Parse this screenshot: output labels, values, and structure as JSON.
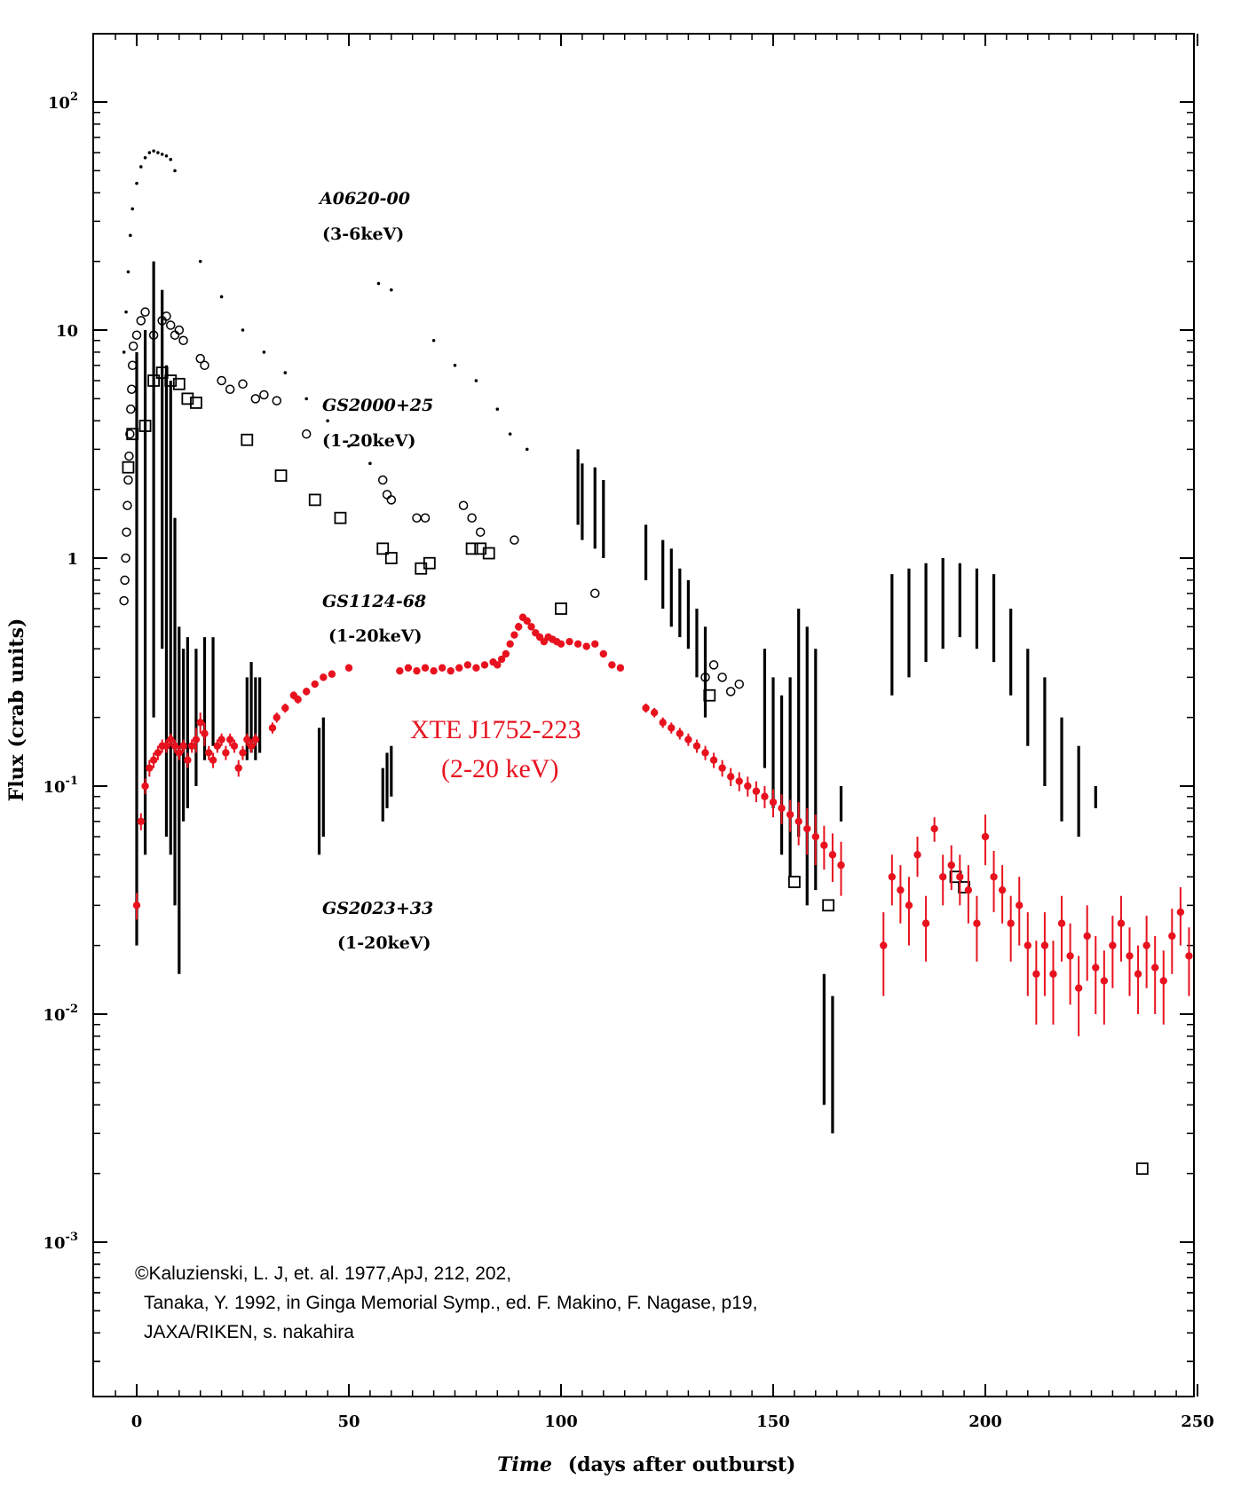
{
  "chart_data": {
    "type": "scatter",
    "title": "",
    "xlabel": "Time",
    "xlabel_suffix": "(days after outburst)",
    "ylabel": "Flux (crab units)",
    "xlim": [
      -8,
      250
    ],
    "ylim_log10": [
      -3.7,
      2.3
    ],
    "yscale": "log",
    "grid": false,
    "x_ticks": [
      0,
      50,
      100,
      150,
      200,
      250
    ],
    "x_tick_labels": [
      "0",
      "50",
      "100",
      "150",
      "200",
      "250"
    ],
    "y_ticks_log10": [
      2,
      1,
      0,
      -1,
      -2,
      -3
    ],
    "y_tick_labels": [
      {
        "base": "10",
        "exp": "2"
      },
      {
        "base": "10",
        "exp": ""
      },
      {
        "base": "1",
        "exp": ""
      },
      {
        "base": "10",
        "exp": "-1"
      },
      {
        "base": "10",
        "exp": "-2"
      },
      {
        "base": "10",
        "exp": "-3"
      }
    ],
    "series": [
      {
        "name": "A0620-00",
        "band": "(3-6keV)",
        "color": "#000000",
        "marker": "dot",
        "x": [
          -3,
          -2.5,
          -2,
          -1.5,
          -1,
          0,
          1,
          2,
          3,
          4,
          5,
          6,
          7,
          8,
          9,
          15,
          20,
          25,
          30,
          35,
          40,
          45,
          50,
          55,
          57,
          60,
          70,
          75,
          80,
          85,
          88,
          92
        ],
        "y": [
          8,
          12,
          18,
          26,
          34,
          44,
          52,
          57,
          60,
          61,
          60,
          59,
          58,
          56,
          50,
          20,
          14,
          10,
          8,
          6.5,
          5,
          4,
          3.1,
          2.6,
          16,
          15,
          9,
          7,
          6,
          4.5,
          3.5,
          3
        ]
      },
      {
        "name": "GS2000+25",
        "band": "(1-20keV)",
        "color": "#000000",
        "marker": "circle",
        "x": [
          -3,
          -2.8,
          -2.6,
          -2.4,
          -2.2,
          -2,
          -1.8,
          -1.6,
          -1.4,
          -1.2,
          -1,
          -0.8,
          0,
          1,
          2,
          4,
          6,
          7,
          8,
          9,
          10,
          11,
          15,
          16,
          20,
          22,
          25,
          28,
          30,
          33,
          40,
          58,
          59,
          60,
          66,
          68,
          77,
          79,
          81,
          89,
          108,
          134,
          136,
          138,
          140,
          142
        ],
        "y": [
          0.65,
          0.8,
          1,
          1.3,
          1.7,
          2.2,
          2.8,
          3.5,
          4.5,
          5.5,
          7,
          8.5,
          9.5,
          11,
          12,
          9.5,
          11,
          11.5,
          10.5,
          9.5,
          10,
          9,
          7.5,
          7,
          6,
          5.5,
          5.8,
          5,
          5.2,
          4.9,
          3.5,
          2.2,
          1.9,
          1.8,
          1.5,
          1.5,
          1.7,
          1.5,
          1.3,
          1.2,
          0.7,
          0.3,
          0.34,
          0.3,
          0.26,
          0.28
        ]
      },
      {
        "name": "GS1124-68",
        "band": "(1-20keV)",
        "color": "#000000",
        "marker": "square",
        "x": [
          -2,
          -1,
          2,
          4,
          6,
          8,
          10,
          12,
          14,
          26,
          34,
          42,
          48,
          58,
          60,
          67,
          69,
          79,
          81,
          83,
          100,
          135,
          155,
          163,
          193,
          195,
          237
        ],
        "y": [
          2.5,
          3.5,
          3.8,
          6,
          6.5,
          6,
          5.8,
          5,
          4.8,
          3.3,
          2.3,
          1.8,
          1.5,
          1.1,
          1.0,
          0.9,
          0.95,
          1.1,
          1.1,
          1.05,
          0.6,
          0.25,
          0.038,
          0.03,
          0.04,
          0.036,
          0.0021
        ]
      },
      {
        "name": "GS2023+33",
        "band": "(1-20keV)",
        "color": "#000000",
        "marker": "vbar",
        "x": [
          0,
          2,
          4,
          6,
          7,
          8,
          9,
          10,
          11,
          12,
          14,
          16,
          18,
          26,
          27,
          28,
          29,
          43,
          44,
          58,
          59,
          60,
          104,
          105,
          108,
          110,
          120,
          124,
          126,
          128,
          130,
          132,
          134,
          148,
          150,
          152,
          154,
          156,
          158,
          160,
          162,
          164,
          166,
          178,
          182,
          186,
          190,
          194,
          198,
          202,
          206,
          210,
          214,
          218,
          222,
          226
        ],
        "y_low": [
          0.02,
          0.05,
          0.2,
          0.4,
          0.06,
          0.05,
          0.03,
          0.015,
          0.07,
          0.08,
          0.1,
          0.13,
          0.15,
          0.13,
          0.14,
          0.13,
          0.14,
          0.05,
          0.06,
          0.07,
          0.08,
          0.09,
          1.4,
          1.2,
          1.1,
          1.0,
          0.8,
          0.6,
          0.5,
          0.45,
          0.4,
          0.3,
          0.2,
          0.12,
          0.08,
          0.05,
          0.04,
          0.06,
          0.03,
          0.035,
          0.004,
          0.003,
          0.07,
          0.25,
          0.3,
          0.35,
          0.4,
          0.45,
          0.4,
          0.35,
          0.25,
          0.15,
          0.1,
          0.07,
          0.06,
          0.08
        ],
        "y_high": [
          8,
          10,
          20,
          15,
          7,
          6,
          1.5,
          0.5,
          0.4,
          0.45,
          0.4,
          0.45,
          0.45,
          0.3,
          0.35,
          0.3,
          0.3,
          0.18,
          0.2,
          0.12,
          0.14,
          0.15,
          3,
          2.6,
          2.5,
          2.2,
          1.4,
          1.2,
          1.1,
          0.9,
          0.8,
          0.6,
          0.5,
          0.4,
          0.3,
          0.25,
          0.3,
          0.6,
          0.5,
          0.4,
          0.015,
          0.012,
          0.1,
          0.85,
          0.9,
          0.95,
          1.0,
          0.95,
          0.9,
          0.85,
          0.6,
          0.4,
          0.3,
          0.2,
          0.15,
          0.1
        ]
      },
      {
        "name": "XTE J1752-223",
        "band": "(2-20 keV)",
        "color": "#e8121f",
        "marker": "dot-errorbar",
        "x": [
          0,
          1,
          2,
          3,
          4,
          5,
          6,
          7,
          8,
          9,
          10,
          11,
          12,
          13,
          14,
          15,
          16,
          17,
          18,
          19,
          20,
          21,
          22,
          23,
          24,
          25,
          26,
          27,
          28,
          32,
          33,
          35,
          37,
          38,
          40,
          42,
          44,
          46,
          50,
          62,
          64,
          66,
          68,
          70,
          72,
          74,
          76,
          78,
          80,
          82,
          84,
          85,
          86,
          87,
          88,
          89,
          90,
          91,
          92,
          93,
          94,
          95,
          96,
          97,
          98,
          99,
          100,
          102,
          104,
          106,
          108,
          110,
          112,
          114,
          120,
          122,
          124,
          126,
          128,
          130,
          132,
          134,
          136,
          138,
          140,
          142,
          144,
          146,
          148,
          150,
          152,
          154,
          156,
          158,
          160,
          162,
          164,
          166,
          176,
          178,
          180,
          182,
          184,
          186,
          188,
          190,
          192,
          194,
          196,
          198,
          200,
          202,
          204,
          206,
          208,
          210,
          212,
          214,
          216,
          218,
          220,
          222,
          224,
          226,
          228,
          230,
          232,
          234,
          236,
          238,
          240,
          242,
          244,
          246,
          248
        ],
        "y": [
          0.03,
          0.07,
          0.1,
          0.12,
          0.13,
          0.14,
          0.15,
          0.15,
          0.16,
          0.15,
          0.14,
          0.15,
          0.13,
          0.15,
          0.16,
          0.19,
          0.17,
          0.14,
          0.13,
          0.15,
          0.16,
          0.14,
          0.16,
          0.15,
          0.12,
          0.14,
          0.16,
          0.15,
          0.16,
          0.18,
          0.2,
          0.22,
          0.25,
          0.24,
          0.26,
          0.28,
          0.3,
          0.31,
          0.33,
          0.32,
          0.33,
          0.32,
          0.33,
          0.32,
          0.33,
          0.32,
          0.33,
          0.34,
          0.33,
          0.34,
          0.35,
          0.34,
          0.36,
          0.38,
          0.42,
          0.46,
          0.5,
          0.55,
          0.53,
          0.5,
          0.47,
          0.45,
          0.43,
          0.45,
          0.44,
          0.43,
          0.42,
          0.43,
          0.42,
          0.41,
          0.42,
          0.38,
          0.34,
          0.33,
          0.22,
          0.21,
          0.19,
          0.18,
          0.17,
          0.16,
          0.15,
          0.14,
          0.13,
          0.12,
          0.11,
          0.105,
          0.1,
          0.095,
          0.09,
          0.085,
          0.08,
          0.075,
          0.07,
          0.065,
          0.06,
          0.055,
          0.05,
          0.045,
          0.02,
          0.04,
          0.035,
          0.03,
          0.05,
          0.025,
          0.065,
          0.04,
          0.045,
          0.04,
          0.035,
          0.025,
          0.06,
          0.04,
          0.035,
          0.025,
          0.03,
          0.02,
          0.015,
          0.02,
          0.015,
          0.025,
          0.018,
          0.013,
          0.022,
          0.016,
          0.014,
          0.02,
          0.025,
          0.018,
          0.015,
          0.02,
          0.016,
          0.014,
          0.022,
          0.028,
          0.018
        ],
        "y_err": [
          0.004,
          0.006,
          0.008,
          0.01,
          0.01,
          0.01,
          0.01,
          0.01,
          0.01,
          0.01,
          0.01,
          0.01,
          0.01,
          0.01,
          0.02,
          0.02,
          0.02,
          0.01,
          0.01,
          0.01,
          0.01,
          0.01,
          0.01,
          0.01,
          0.01,
          0.01,
          0.01,
          0.01,
          0.01,
          0.01,
          0.01,
          0.01,
          0.01,
          0.01,
          0.01,
          0.01,
          0.01,
          0.01,
          0.01,
          0.01,
          0.01,
          0.01,
          0.01,
          0.01,
          0.01,
          0.01,
          0.01,
          0.01,
          0.01,
          0.01,
          0.01,
          0.01,
          0.01,
          0.01,
          0.01,
          0.01,
          0.02,
          0.02,
          0.02,
          0.01,
          0.01,
          0.01,
          0.01,
          0.01,
          0.01,
          0.01,
          0.01,
          0.01,
          0.01,
          0.01,
          0.01,
          0.01,
          0.01,
          0.01,
          0.01,
          0.01,
          0.01,
          0.01,
          0.01,
          0.01,
          0.01,
          0.01,
          0.01,
          0.01,
          0.01,
          0.01,
          0.01,
          0.01,
          0.01,
          0.012,
          0.012,
          0.012,
          0.015,
          0.015,
          0.015,
          0.012,
          0.012,
          0.012,
          0.008,
          0.01,
          0.01,
          0.01,
          0.01,
          0.008,
          0.008,
          0.01,
          0.01,
          0.01,
          0.01,
          0.008,
          0.015,
          0.012,
          0.01,
          0.008,
          0.01,
          0.008,
          0.006,
          0.008,
          0.006,
          0.008,
          0.007,
          0.005,
          0.008,
          0.006,
          0.005,
          0.007,
          0.008,
          0.006,
          0.005,
          0.007,
          0.006,
          0.005,
          0.007,
          0.008,
          0.006
        ]
      }
    ],
    "annotations": [
      {
        "text": "XTE J1752-223",
        "color": "#e8121f"
      },
      {
        "text": "(2-20 keV)",
        "color": "#e8121f"
      }
    ]
  },
  "credit": {
    "line1": "©Kaluzienski, L. J, et. al. 1977,ApJ, 212, 202,",
    "line2": "Tanaka, Y. 1992, in Ginga Memorial Symp., ed. F. Makino, F. Nagase, p19,",
    "line3": "JAXA/RIKEN, s. nakahira"
  }
}
